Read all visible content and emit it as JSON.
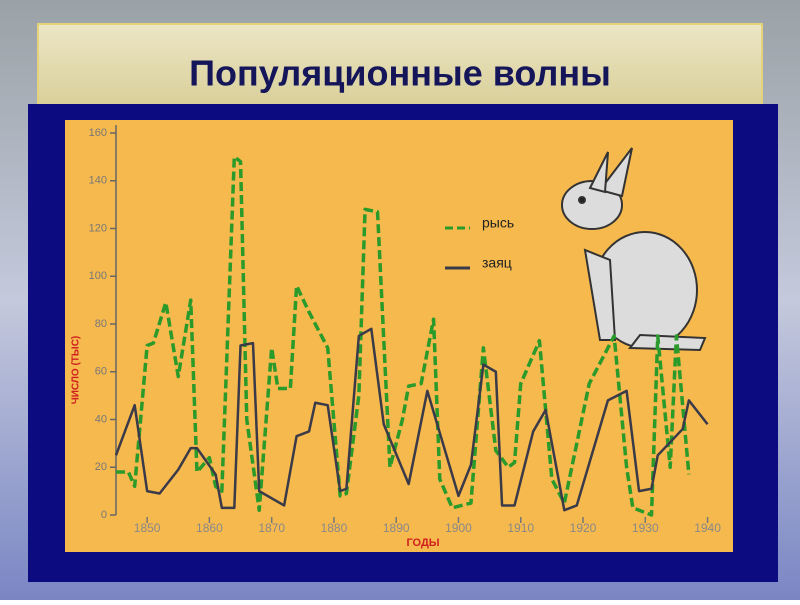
{
  "chart_data": {
    "type": "line",
    "title": "Популяционные волны",
    "y_label": "ЧИСЛО (ТЫС)",
    "x_label": "ГОДЫ",
    "xlim": [
      1845,
      1942
    ],
    "xticks": [
      1850,
      1860,
      1870,
      1880,
      1890,
      1900,
      1910,
      1920,
      1930,
      1940
    ],
    "ylim": [
      0,
      160
    ],
    "yticks": [
      0,
      20,
      40,
      60,
      80,
      100,
      120,
      140,
      160
    ],
    "legend_position": "upper right",
    "series": [
      {
        "name": "рысь",
        "color": "#2a9a2a",
        "dashed": true,
        "x": [
          1845,
          1847,
          1848,
          1850,
          1851,
          1853,
          1855,
          1857,
          1858,
          1860,
          1861,
          1862,
          1864,
          1865,
          1866,
          1868,
          1870,
          1871,
          1873,
          1874,
          1876,
          1879,
          1881,
          1882,
          1884,
          1885,
          1887,
          1889,
          1891,
          1892,
          1894,
          1896,
          1897,
          1899,
          1902,
          1904,
          1906,
          1908,
          1909,
          1910,
          1913,
          1915,
          1917,
          1921,
          1925,
          1927,
          1928,
          1931,
          1932,
          1934,
          1935,
          1937
        ],
        "values": [
          18,
          18,
          12,
          71,
          72,
          89,
          58,
          90,
          18,
          24,
          12,
          10,
          150,
          148,
          40,
          2,
          70,
          53,
          53,
          96,
          85,
          70,
          8,
          9,
          50,
          128,
          127,
          20,
          40,
          54,
          55,
          82,
          15,
          3,
          5,
          70,
          27,
          20,
          22,
          55,
          73,
          15,
          5,
          55,
          75,
          20,
          3,
          0,
          75,
          20,
          75,
          17
        ]
      },
      {
        "name": "заяц",
        "color": "#3a3a48",
        "dashed": false,
        "x": [
          1845,
          1848,
          1850,
          1852,
          1855,
          1857,
          1858,
          1861,
          1862,
          1864,
          1865,
          1867,
          1868,
          1872,
          1874,
          1876,
          1877,
          1879,
          1881,
          1882,
          1884,
          1886,
          1888,
          1892,
          1895,
          1900,
          1902,
          1904,
          1906,
          1907,
          1909,
          1912,
          1914,
          1917,
          1919,
          1924,
          1927,
          1929,
          1931,
          1932,
          1936,
          1937,
          1940
        ],
        "values": [
          25,
          46,
          10,
          9,
          19,
          28,
          28,
          17,
          3,
          3,
          71,
          72,
          10,
          4,
          33,
          35,
          47,
          46,
          10,
          11,
          75,
          78,
          38,
          13,
          52,
          8,
          21,
          63,
          60,
          4,
          4,
          35,
          44,
          2,
          4,
          48,
          52,
          10,
          11,
          25,
          36,
          48,
          38
        ]
      }
    ]
  }
}
